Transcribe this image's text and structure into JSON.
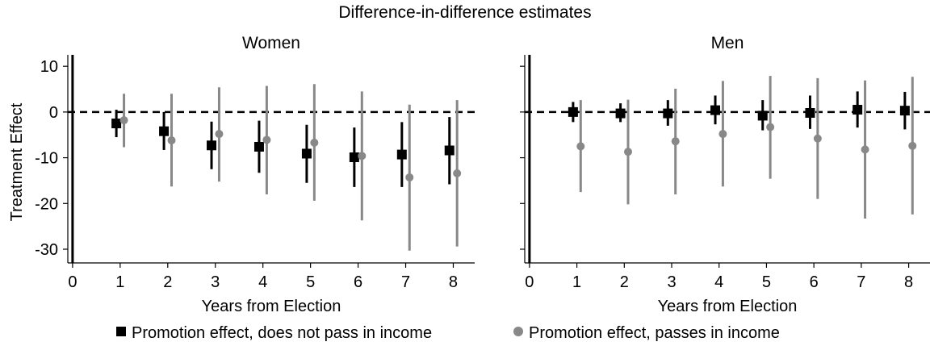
{
  "title": "Difference-in-difference estimates",
  "chart_data": [
    {
      "type": "scatter",
      "title": "Women",
      "xlabel": "Years from Election",
      "ylabel": "Treatment Effect",
      "xlim": [
        -0.1,
        8.45
      ],
      "ylim": [
        -33,
        12.5
      ],
      "xticks": [
        0,
        1,
        2,
        3,
        4,
        5,
        6,
        7,
        8
      ],
      "yticks": [
        10,
        0,
        -10,
        -20,
        -30
      ],
      "reference_line_y": 0,
      "reference_line_x": 0,
      "series": [
        {
          "name": "Promotion effect, does not pass in income",
          "marker": "square",
          "color": "#000000",
          "offset": -0.08,
          "points": [
            {
              "x": 1,
              "y": -2.5,
              "lo": -5.5,
              "hi": 0.5
            },
            {
              "x": 2,
              "y": -4.2,
              "lo": -8.3,
              "hi": 0.0
            },
            {
              "x": 3,
              "y": -7.3,
              "lo": -12.5,
              "hi": -2.1
            },
            {
              "x": 4,
              "y": -7.6,
              "lo": -13.3,
              "hi": -1.9
            },
            {
              "x": 5,
              "y": -9.1,
              "lo": -15.5,
              "hi": -2.8
            },
            {
              "x": 6,
              "y": -9.9,
              "lo": -16.4,
              "hi": -3.4
            },
            {
              "x": 7,
              "y": -9.3,
              "lo": -16.4,
              "hi": -2.2
            },
            {
              "x": 8,
              "y": -8.4,
              "lo": -15.8,
              "hi": -1.1
            }
          ]
        },
        {
          "name": "Promotion effect, passes in income",
          "marker": "circle",
          "color": "#888888",
          "offset": 0.08,
          "points": [
            {
              "x": 1,
              "y": -1.8,
              "lo": -7.7,
              "hi": 4.0
            },
            {
              "x": 2,
              "y": -6.2,
              "lo": -16.3,
              "hi": 4.0
            },
            {
              "x": 3,
              "y": -4.8,
              "lo": -15.2,
              "hi": 5.4
            },
            {
              "x": 4,
              "y": -6.1,
              "lo": -18.0,
              "hi": 5.7
            },
            {
              "x": 5,
              "y": -6.7,
              "lo": -19.4,
              "hi": 6.1
            },
            {
              "x": 6,
              "y": -9.6,
              "lo": -23.7,
              "hi": 4.5
            },
            {
              "x": 7,
              "y": -14.3,
              "lo": -30.3,
              "hi": 1.6
            },
            {
              "x": 8,
              "y": -13.4,
              "lo": -29.4,
              "hi": 2.6
            }
          ]
        }
      ]
    },
    {
      "type": "scatter",
      "title": "Men",
      "xlabel": "Years from Election",
      "ylabel": "",
      "xlim": [
        -0.1,
        8.45
      ],
      "ylim": [
        -33,
        12.5
      ],
      "xticks": [
        0,
        1,
        2,
        3,
        4,
        5,
        6,
        7,
        8
      ],
      "yticks": [
        10,
        0,
        -10,
        -20,
        -30
      ],
      "reference_line_y": 0,
      "reference_line_x": 0,
      "series": [
        {
          "name": "Promotion effect, does not pass in income",
          "marker": "square",
          "color": "#000000",
          "offset": -0.08,
          "points": [
            {
              "x": 1,
              "y": 0.0,
              "lo": -2.2,
              "hi": 2.2
            },
            {
              "x": 2,
              "y": -0.3,
              "lo": -2.2,
              "hi": 1.9
            },
            {
              "x": 3,
              "y": -0.3,
              "lo": -3.0,
              "hi": 2.6
            },
            {
              "x": 4,
              "y": 0.4,
              "lo": -2.7,
              "hi": 3.6
            },
            {
              "x": 5,
              "y": -0.8,
              "lo": -4.0,
              "hi": 2.6
            },
            {
              "x": 6,
              "y": -0.2,
              "lo": -3.7,
              "hi": 3.6
            },
            {
              "x": 7,
              "y": 0.5,
              "lo": -3.4,
              "hi": 4.5
            },
            {
              "x": 8,
              "y": 0.3,
              "lo": -3.8,
              "hi": 4.4
            }
          ]
        },
        {
          "name": "Promotion effect, passes in income",
          "marker": "circle",
          "color": "#888888",
          "offset": 0.08,
          "points": [
            {
              "x": 1,
              "y": -7.5,
              "lo": -17.5,
              "hi": 2.6
            },
            {
              "x": 2,
              "y": -8.7,
              "lo": -20.2,
              "hi": 2.7
            },
            {
              "x": 3,
              "y": -6.4,
              "lo": -18.0,
              "hi": 5.1
            },
            {
              "x": 4,
              "y": -4.8,
              "lo": -16.3,
              "hi": 6.8
            },
            {
              "x": 5,
              "y": -3.3,
              "lo": -14.6,
              "hi": 7.9
            },
            {
              "x": 6,
              "y": -5.8,
              "lo": -19.0,
              "hi": 7.4
            },
            {
              "x": 7,
              "y": -8.2,
              "lo": -23.3,
              "hi": 6.9
            },
            {
              "x": 8,
              "y": -7.4,
              "lo": -22.4,
              "hi": 7.7
            }
          ]
        }
      ]
    }
  ],
  "legend": {
    "placement": "bottom",
    "items": [
      {
        "label": "Promotion effect, does not pass in income",
        "marker": "square",
        "color": "#000000"
      },
      {
        "label": "Promotion effect, passes in income",
        "marker": "circle",
        "color": "#888888"
      }
    ]
  }
}
